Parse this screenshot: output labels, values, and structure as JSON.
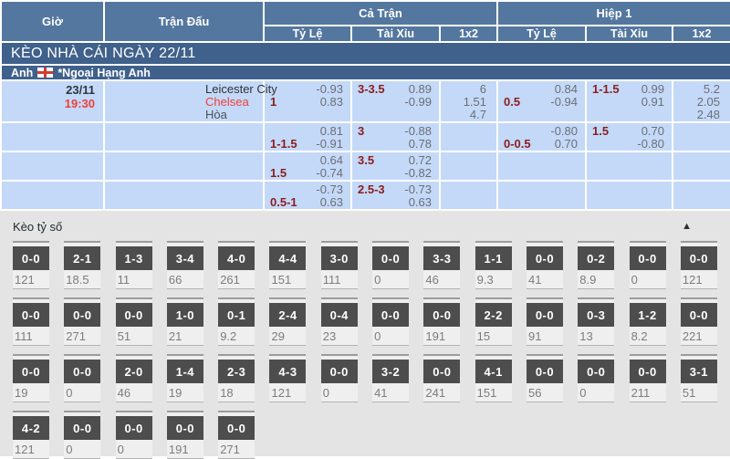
{
  "table": {
    "headers": {
      "time": "Giờ",
      "match": "Trận Đấu",
      "full_time": "Cả Trận",
      "first_half": "Hiệp 1",
      "sub": [
        "Tỷ Lệ",
        "Tài Xỉu",
        "1x2"
      ]
    },
    "section_title": "KÈO NHÀ CÁI NGÀY 22/11",
    "league": {
      "country": "Anh",
      "flag": "england-flag",
      "name": "*Ngoại Hạng Anh"
    },
    "match": {
      "date": "23/11",
      "time": "19:30",
      "home": "Leicester City",
      "away": "Chelsea",
      "draw_label": "Hòa"
    },
    "rows": [
      {
        "ft_hdp": {
          "line": "1",
          "v1": "-0.93",
          "v2": "0.83"
        },
        "ft_ou": {
          "line": "3-3.5",
          "v1": "0.89",
          "v2": "-0.99"
        },
        "ft_1x2": [
          "6",
          "1.51",
          "4.7"
        ],
        "h1_hdp": {
          "line": "0.5",
          "v1": "0.84",
          "v2": "-0.94"
        },
        "h1_ou": {
          "line": "1-1.5",
          "v1": "0.99",
          "v2": "0.91"
        },
        "h1_1x2": [
          "5.2",
          "2.05",
          "2.48"
        ]
      },
      {
        "ft_hdp": {
          "line": "1-1.5",
          "v1": "0.81",
          "v2": "-0.91"
        },
        "ft_ou": {
          "line": "3",
          "v1": "-0.88",
          "v2": "0.78"
        },
        "ft_1x2": null,
        "h1_hdp": {
          "line": "0-0.5",
          "v1": "-0.80",
          "v2": "0.70"
        },
        "h1_ou": {
          "line": "1.5",
          "v1": "0.70",
          "v2": "-0.80"
        },
        "h1_1x2": null
      },
      {
        "ft_hdp": {
          "line": "1.5",
          "v1": "0.64",
          "v2": "-0.74"
        },
        "ft_ou": {
          "line": "3.5",
          "v1": "0.72",
          "v2": "-0.82"
        },
        "ft_1x2": null,
        "h1_hdp": null,
        "h1_ou": null,
        "h1_1x2": null
      },
      {
        "ft_hdp": {
          "line": "0.5-1",
          "v1": "-0.73",
          "v2": "0.63"
        },
        "ft_ou": {
          "line": "2.5-3",
          "v1": "-0.73",
          "v2": "0.63"
        },
        "ft_1x2": null,
        "h1_hdp": null,
        "h1_ou": null,
        "h1_1x2": null
      }
    ]
  },
  "score_section": {
    "title": "Kèo tỷ số",
    "collapse_icon": "▲",
    "rows": [
      [
        {
          "score": "0-0",
          "odds": "121"
        },
        {
          "score": "2-1",
          "odds": "18.5"
        },
        {
          "score": "1-3",
          "odds": "11"
        },
        {
          "score": "3-4",
          "odds": "66"
        },
        {
          "score": "4-0",
          "odds": "261"
        },
        {
          "score": "4-4",
          "odds": "151"
        },
        {
          "score": "3-0",
          "odds": "111"
        },
        {
          "score": "0-0",
          "odds": "0"
        },
        {
          "score": "3-3",
          "odds": "46"
        },
        {
          "score": "1-1",
          "odds": "9.3"
        },
        {
          "score": "0-0",
          "odds": "41"
        },
        {
          "score": "0-2",
          "odds": "8.9"
        },
        {
          "score": "0-0",
          "odds": "0"
        },
        {
          "score": "0-0",
          "odds": "121"
        }
      ],
      [
        {
          "score": "0-0",
          "odds": "111"
        },
        {
          "score": "0-0",
          "odds": "271"
        },
        {
          "score": "0-0",
          "odds": "51"
        },
        {
          "score": "1-0",
          "odds": "21"
        },
        {
          "score": "0-1",
          "odds": "9.2"
        },
        {
          "score": "2-4",
          "odds": "29"
        },
        {
          "score": "0-4",
          "odds": "23"
        },
        {
          "score": "0-0",
          "odds": "0"
        },
        {
          "score": "0-0",
          "odds": "191"
        },
        {
          "score": "2-2",
          "odds": "15"
        },
        {
          "score": "0-0",
          "odds": "91"
        },
        {
          "score": "0-3",
          "odds": "13"
        },
        {
          "score": "1-2",
          "odds": "8.2"
        },
        {
          "score": "0-0",
          "odds": "221"
        }
      ],
      [
        {
          "score": "0-0",
          "odds": "19"
        },
        {
          "score": "0-0",
          "odds": "0"
        },
        {
          "score": "2-0",
          "odds": "46"
        },
        {
          "score": "1-4",
          "odds": "19"
        },
        {
          "score": "2-3",
          "odds": "18"
        },
        {
          "score": "4-3",
          "odds": "121"
        },
        {
          "score": "0-0",
          "odds": "0"
        },
        {
          "score": "3-2",
          "odds": "41"
        },
        {
          "score": "0-0",
          "odds": "241"
        },
        {
          "score": "4-1",
          "odds": "151"
        },
        {
          "score": "0-0",
          "odds": "56"
        },
        {
          "score": "0-0",
          "odds": "0"
        },
        {
          "score": "0-0",
          "odds": "211"
        },
        {
          "score": "3-1",
          "odds": "51"
        }
      ],
      [
        {
          "score": "4-2",
          "odds": "121"
        },
        {
          "score": "0-0",
          "odds": "0"
        },
        {
          "score": "0-0",
          "odds": "0"
        },
        {
          "score": "0-0",
          "odds": "191"
        },
        {
          "score": "0-0",
          "odds": "271"
        }
      ]
    ]
  },
  "colors": {
    "header_bg": "#54779f",
    "band_bg": "#3f618b",
    "row_bg": "#c4d9f8",
    "handicap_text": "#8c1d1d",
    "odds_text": "#6a6f76",
    "highlight_red": "#ee4038",
    "score_box_bg": "#4d4d4d",
    "section_bg": "#e4e4e4"
  }
}
